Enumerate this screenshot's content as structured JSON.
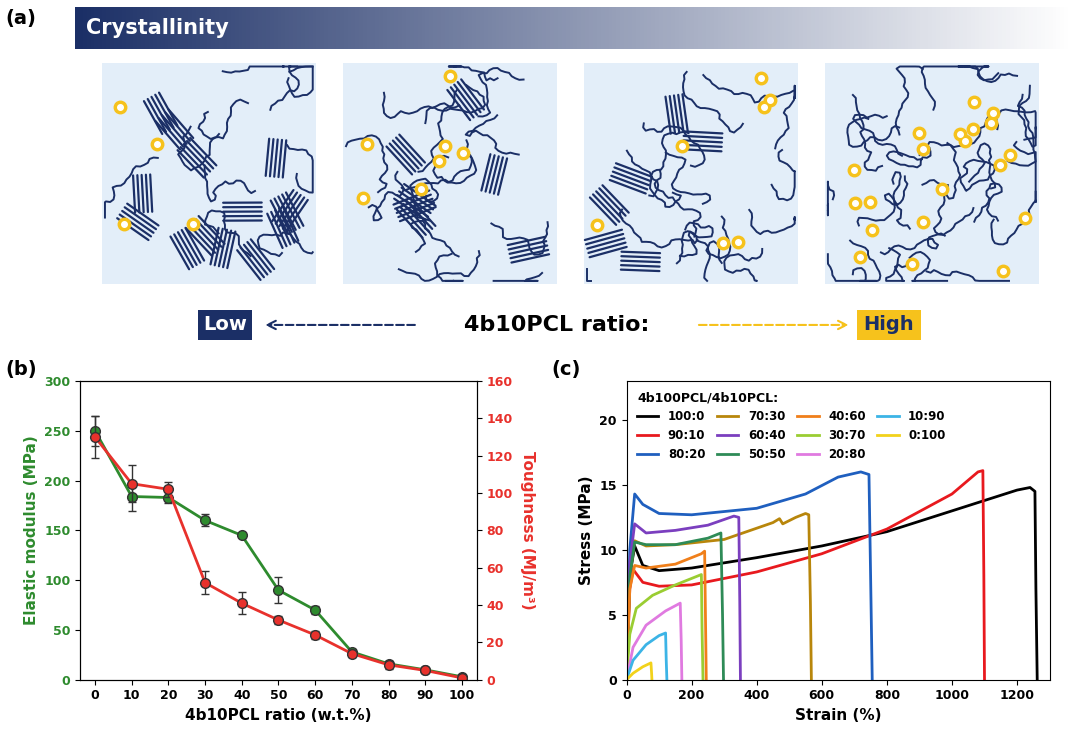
{
  "schematic": {
    "panel_label": "(a)",
    "gradient_label": "Crystallinity",
    "low_label": "Low",
    "axis_label": "4b10PCL ratio:",
    "high_label": "High"
  },
  "chart_data": [
    {
      "type": "line",
      "panel_label": "(b)",
      "x": [
        0,
        10,
        20,
        30,
        40,
        50,
        60,
        70,
        80,
        90,
        100
      ],
      "xlim": [
        -4,
        104
      ],
      "xticks": [
        0,
        10,
        20,
        30,
        40,
        50,
        60,
        70,
        80,
        90,
        100
      ],
      "xlabel": "4b10PCL ratio (w.t.%)",
      "ylabel": "Elastic modulus (MPa)",
      "ylim": [
        0,
        300
      ],
      "yticks": [
        0,
        50,
        100,
        150,
        200,
        250,
        300
      ],
      "y2label": "Toughness (MJ/m³)",
      "y2lim": [
        0,
        160
      ],
      "y2ticks": [
        0,
        20,
        40,
        60,
        80,
        100,
        120,
        140,
        160
      ],
      "series": [
        {
          "color": "#2e8b2e",
          "marker": "o",
          "values": [
            250,
            184,
            183,
            160,
            145,
            90,
            70,
            28,
            16,
            10,
            3
          ],
          "errors": [
            15,
            15,
            6,
            6,
            2,
            13,
            4,
            3,
            3,
            3,
            1
          ]
        },
        {
          "color": "#e8312c",
          "marker": "o",
          "axis": "y2",
          "values": [
            130,
            105,
            102,
            52,
            41,
            32,
            24,
            14,
            8,
            5,
            1
          ],
          "errors": [
            11,
            10,
            4,
            6,
            6,
            2,
            2,
            2,
            2,
            1,
            0.5
          ]
        }
      ]
    },
    {
      "type": "line",
      "panel_label": "(c)",
      "xlabel": "Strain (%)",
      "ylabel": "Stress (MPa)",
      "xlim": [
        0,
        1300
      ],
      "xticks": [
        0,
        200,
        400,
        600,
        800,
        1000,
        1200
      ],
      "ylim": [
        0,
        23
      ],
      "yticks": [
        0,
        5,
        10,
        15,
        20
      ],
      "legend": "upper left",
      "legend_title": "4b100PCL/4b10PCL:",
      "series": [
        {
          "name": "100:0",
          "color": "#000000",
          "x": [
            0,
            10,
            25,
            50,
            100,
            200,
            400,
            600,
            800,
            1000,
            1200,
            1240,
            1255,
            1258,
            1262
          ],
          "values": [
            0,
            8,
            10.3,
            8.8,
            8.4,
            8.6,
            9.4,
            10.3,
            11.4,
            13,
            14.6,
            14.8,
            14.5,
            7,
            0
          ]
        },
        {
          "name": "90:10",
          "color": "#e8191e",
          "x": [
            0,
            10,
            20,
            50,
            100,
            200,
            400,
            600,
            800,
            1000,
            1080,
            1095,
            1098,
            1100
          ],
          "values": [
            0,
            7,
            8.5,
            7.5,
            7.2,
            7.3,
            8.3,
            9.7,
            11.6,
            14.3,
            16,
            16.1,
            8,
            0
          ]
        },
        {
          "name": "80:20",
          "color": "#1f5fbf",
          "x": [
            0,
            10,
            25,
            50,
            100,
            200,
            400,
            550,
            650,
            720,
            745,
            750,
            755
          ],
          "values": [
            0,
            10,
            14.3,
            13.5,
            12.8,
            12.7,
            13.2,
            14.3,
            15.6,
            16,
            15.8,
            8,
            0
          ]
        },
        {
          "name": "70:30",
          "color": "#b8860b",
          "x": [
            0,
            10,
            25,
            60,
            150,
            300,
            450,
            470,
            480,
            520,
            550,
            560,
            565,
            568
          ],
          "values": [
            0,
            8,
            10.7,
            10.3,
            10.4,
            10.8,
            12.1,
            12.4,
            12,
            12.5,
            12.8,
            12.7,
            6,
            0
          ]
        },
        {
          "name": "60:40",
          "color": "#7b3fbf",
          "x": [
            0,
            10,
            25,
            60,
            150,
            250,
            330,
            345,
            348,
            350
          ],
          "values": [
            0,
            9,
            12,
            11.3,
            11.5,
            11.9,
            12.6,
            12.5,
            6,
            0
          ]
        },
        {
          "name": "50:50",
          "color": "#2e8b57",
          "x": [
            0,
            10,
            25,
            60,
            150,
            250,
            290,
            295,
            298
          ],
          "values": [
            0,
            8,
            10.6,
            10.4,
            10.4,
            10.9,
            11.3,
            5,
            0
          ]
        },
        {
          "name": "40:60",
          "color": "#f07f1a",
          "x": [
            0,
            10,
            25,
            60,
            150,
            230,
            240,
            243,
            245
          ],
          "values": [
            0,
            7,
            8.8,
            8.6,
            8.9,
            9.7,
            9.9,
            4,
            0
          ]
        },
        {
          "name": "30:70",
          "color": "#9acd32",
          "x": [
            0,
            10,
            30,
            80,
            150,
            220,
            230,
            232,
            235
          ],
          "values": [
            0,
            3.5,
            5.5,
            6.5,
            7.3,
            8.0,
            8.1,
            4,
            0
          ]
        },
        {
          "name": "20:80",
          "color": "#e07ae0",
          "x": [
            0,
            20,
            60,
            120,
            165,
            168,
            170
          ],
          "values": [
            0,
            2.5,
            4.2,
            5.3,
            5.9,
            3,
            0
          ]
        },
        {
          "name": "10:90",
          "color": "#3cb4e6",
          "x": [
            0,
            20,
            60,
            100,
            120,
            122,
            124
          ],
          "values": [
            0,
            1.5,
            2.7,
            3.4,
            3.6,
            1.5,
            0
          ]
        },
        {
          "name": "0:100",
          "color": "#f2d21b",
          "x": [
            0,
            20,
            50,
            75,
            77,
            78
          ],
          "values": [
            0,
            0.5,
            1.0,
            1.3,
            0.5,
            0
          ]
        }
      ]
    }
  ]
}
